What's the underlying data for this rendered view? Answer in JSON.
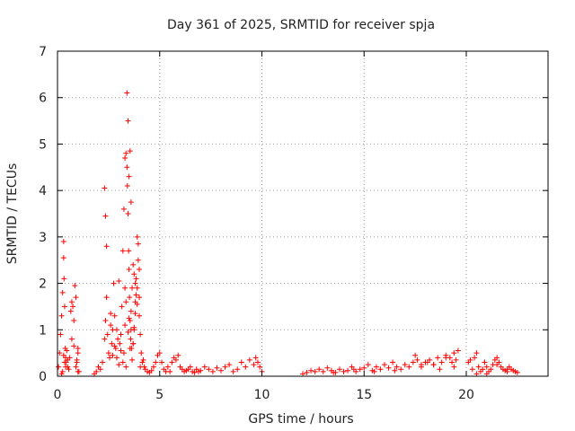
{
  "chart_data": {
    "type": "scatter",
    "title": "Day 361 of 2025, SRMTID for receiver spja",
    "xlabel": "GPS time / hours",
    "ylabel": "SRMTID / TECUs",
    "xlim": [
      0,
      24
    ],
    "ylim": [
      0,
      7
    ],
    "xticks": [
      0,
      5,
      10,
      15,
      20
    ],
    "yticks": [
      0,
      1,
      2,
      3,
      4,
      5,
      6,
      7
    ],
    "grid": true,
    "marker": "+",
    "series": [
      {
        "name": "SRMTID",
        "color": "#ff0000",
        "x": [
          0.05,
          0.1,
          0.15,
          0.2,
          0.25,
          0.3,
          0.3,
          0.32,
          0.35,
          0.38,
          0.4,
          0.42,
          0.45,
          0.5,
          0.5,
          0.55,
          0.6,
          0.65,
          0.7,
          0.75,
          0.8,
          0.85,
          0.9,
          0.95,
          1.0,
          1.0,
          1.05,
          1.8,
          1.9,
          2.0,
          2.1,
          2.2,
          2.3,
          2.35,
          2.4,
          2.45,
          2.5,
          2.55,
          2.6,
          2.65,
          2.7,
          2.75,
          2.8,
          2.85,
          2.9,
          2.95,
          3.0,
          3.05,
          3.1,
          3.15,
          3.2,
          3.25,
          3.3,
          3.35,
          3.4,
          3.42,
          3.45,
          3.48,
          3.5,
          3.52,
          3.55,
          3.58,
          3.6,
          3.62,
          3.65,
          3.7,
          3.75,
          3.8,
          3.85,
          3.9,
          3.95,
          4.0,
          4.05,
          4.1,
          4.15,
          4.2,
          4.25,
          4.3,
          4.4,
          4.5,
          4.6,
          4.7,
          4.8,
          4.9,
          5.0,
          5.1,
          5.2,
          5.3,
          5.4,
          5.5,
          5.6,
          5.7,
          5.8,
          5.9,
          6.0,
          6.1,
          6.2,
          6.3,
          6.4,
          6.5,
          6.6,
          6.7,
          6.8,
          6.9,
          7.0,
          7.2,
          7.4,
          7.6,
          7.8,
          8.0,
          8.2,
          8.4,
          8.6,
          8.8,
          9.0,
          9.2,
          9.4,
          9.6,
          9.7,
          9.8,
          9.9,
          10.0,
          3.4,
          3.45,
          3.5,
          3.55,
          3.6,
          3.3,
          3.35,
          3.5,
          3.6,
          3.7,
          3.75,
          3.8,
          3.85,
          3.9,
          3.95,
          4.0,
          2.3,
          2.35,
          2.4,
          3.2,
          3.25,
          3.3,
          3.35,
          3.45,
          3.55,
          3.65,
          3.7,
          3.75,
          3.8,
          3.9,
          4.0,
          4.05,
          2.6,
          2.7,
          2.8,
          2.9,
          3.0,
          3.1,
          0.3,
          0.35,
          0.4,
          0.2,
          0.25,
          0.9,
          0.95,
          1.0,
          0.7,
          0.8,
          12.0,
          12.2,
          12.4,
          12.6,
          12.8,
          13.0,
          13.2,
          13.4,
          13.6,
          13.8,
          14.0,
          14.2,
          14.4,
          14.6,
          14.8,
          15.0,
          15.2,
          15.4,
          15.6,
          15.8,
          16.0,
          16.2,
          16.4,
          16.6,
          16.8,
          17.0,
          17.2,
          17.4,
          17.6,
          17.8,
          18.0,
          18.2,
          18.4,
          18.6,
          18.8,
          19.0,
          19.2,
          19.4,
          19.5,
          19.6,
          20.1,
          20.2,
          20.3,
          20.4,
          20.5,
          20.6,
          20.7,
          20.8,
          20.9,
          21.0,
          21.1,
          21.2,
          21.3,
          21.4,
          21.5,
          21.6,
          21.7,
          21.8,
          21.9,
          22.0,
          22.1,
          22.2,
          22.3,
          22.4,
          22.5,
          17.5,
          17.8,
          18.1,
          18.4,
          18.7,
          19.0,
          19.3,
          19.4,
          15.5,
          16.5,
          13.5,
          14.5,
          21.0,
          21.5,
          20.5,
          22.0
        ],
        "y": [
          0.2,
          0.5,
          0.9,
          1.3,
          1.8,
          2.9,
          2.55,
          2.1,
          1.5,
          0.6,
          0.4,
          0.3,
          0.55,
          0.35,
          0.2,
          0.15,
          0.4,
          1.4,
          1.6,
          1.5,
          1.2,
          1.95,
          1.7,
          0.3,
          0.1,
          0.5,
          0.1,
          0.05,
          0.1,
          0.2,
          0.15,
          0.3,
          0.8,
          1.2,
          1.7,
          0.9,
          0.5,
          0.4,
          1.1,
          0.7,
          0.45,
          2.0,
          1.3,
          0.6,
          1.0,
          0.8,
          2.05,
          0.7,
          0.9,
          1.5,
          2.7,
          3.6,
          4.7,
          4.8,
          4.5,
          4.1,
          3.5,
          2.7,
          2.3,
          1.7,
          1.2,
          0.8,
          1.4,
          0.6,
          1.9,
          2.4,
          1.0,
          1.6,
          2.1,
          3.0,
          2.5,
          1.7,
          0.9,
          0.5,
          0.3,
          0.35,
          0.2,
          0.15,
          0.1,
          0.08,
          0.12,
          0.2,
          0.3,
          0.45,
          0.5,
          0.3,
          0.15,
          0.1,
          0.2,
          0.1,
          0.3,
          0.4,
          0.35,
          0.45,
          0.2,
          0.15,
          0.1,
          0.12,
          0.15,
          0.2,
          0.1,
          0.08,
          0.15,
          0.1,
          0.12,
          0.2,
          0.15,
          0.1,
          0.18,
          0.12,
          0.2,
          0.25,
          0.1,
          0.15,
          0.3,
          0.2,
          0.35,
          0.25,
          0.4,
          0.3,
          0.2,
          0.1,
          6.1,
          5.5,
          4.3,
          4.85,
          3.75,
          1.9,
          1.6,
          1.25,
          1.0,
          0.7,
          2.2,
          2.0,
          1.75,
          1.55,
          2.85,
          1.3,
          4.05,
          3.45,
          2.8,
          0.3,
          0.5,
          1.1,
          0.2,
          0.95,
          0.6,
          0.35,
          0.7,
          1.05,
          1.35,
          1.9,
          2.3,
          0.2,
          1.35,
          1.0,
          0.65,
          0.4,
          0.25,
          0.55,
          0.45,
          0.3,
          0.2,
          0.05,
          0.1,
          0.2,
          0.35,
          0.6,
          0.8,
          0.65,
          0.05,
          0.08,
          0.12,
          0.1,
          0.15,
          0.1,
          0.18,
          0.12,
          0.08,
          0.15,
          0.1,
          0.12,
          0.2,
          0.1,
          0.15,
          0.18,
          0.25,
          0.12,
          0.2,
          0.15,
          0.25,
          0.18,
          0.3,
          0.2,
          0.15,
          0.25,
          0.2,
          0.3,
          0.35,
          0.25,
          0.3,
          0.35,
          0.25,
          0.4,
          0.3,
          0.45,
          0.4,
          0.5,
          0.35,
          0.55,
          0.3,
          0.35,
          0.15,
          0.4,
          0.5,
          0.2,
          0.1,
          0.15,
          0.3,
          0.2,
          0.1,
          0.15,
          0.25,
          0.35,
          0.4,
          0.3,
          0.2,
          0.15,
          0.12,
          0.1,
          0.2,
          0.15,
          0.12,
          0.1,
          0.08,
          0.45,
          0.2,
          0.3,
          0.25,
          0.15,
          0.4,
          0.3,
          0.2,
          0.1,
          0.12,
          0.08,
          0.15,
          0.05,
          0.25,
          0.05,
          0.15
        ]
      }
    ]
  }
}
